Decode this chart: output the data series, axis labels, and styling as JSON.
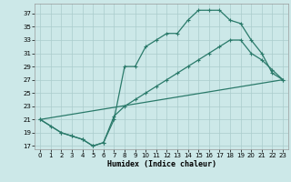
{
  "xlabel": "Humidex (Indice chaleur)",
  "bg_color": "#cce8e8",
  "grid_color": "#aacccc",
  "line_color": "#2a7a6a",
  "xlim": [
    -0.5,
    23.5
  ],
  "ylim": [
    16.5,
    38.5
  ],
  "yticks": [
    17,
    19,
    21,
    23,
    25,
    27,
    29,
    31,
    33,
    35,
    37
  ],
  "xticks": [
    0,
    1,
    2,
    3,
    4,
    5,
    6,
    7,
    8,
    9,
    10,
    11,
    12,
    13,
    14,
    15,
    16,
    17,
    18,
    19,
    20,
    21,
    22,
    23
  ],
  "line1_x": [
    0,
    1,
    2,
    3,
    4,
    5,
    6,
    7,
    8,
    9,
    10,
    11,
    12,
    13,
    14,
    15,
    16,
    17,
    18,
    19,
    20,
    21,
    22,
    23
  ],
  "line1_y": [
    21,
    20,
    19,
    18.5,
    18,
    17,
    17.5,
    21,
    29,
    29,
    32,
    33,
    34,
    34,
    36,
    37.5,
    37.5,
    37.5,
    36,
    35.5,
    33,
    31,
    28,
    27
  ],
  "line2_x": [
    0,
    2,
    3,
    4,
    5,
    6,
    7,
    8,
    9,
    10,
    11,
    12,
    13,
    14,
    15,
    16,
    17,
    18,
    19,
    20,
    21,
    22,
    23
  ],
  "line2_y": [
    21,
    19,
    18.5,
    18,
    17,
    17.5,
    21.5,
    23,
    24,
    25,
    26,
    27,
    28,
    29,
    30,
    31,
    32,
    33,
    33,
    31,
    30,
    28.5,
    27
  ],
  "line3_x": [
    0,
    23
  ],
  "line3_y": [
    21,
    27
  ]
}
